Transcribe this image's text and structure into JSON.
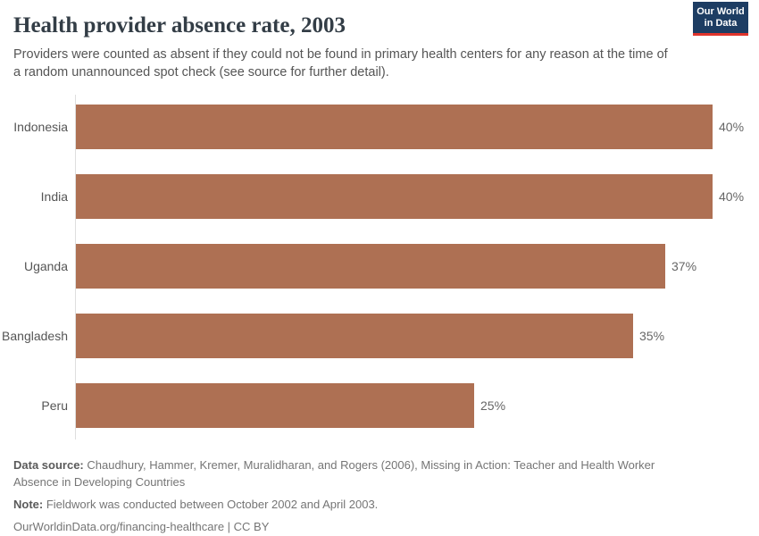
{
  "header": {
    "title": "Health provider absence rate, 2003",
    "subtitle": "Providers were counted as absent if they could not be found in primary health centers for any reason at the time of a random unannounced spot check (see source for further detail).",
    "logo_line1": "Our World",
    "logo_line2": "in Data"
  },
  "chart_data": {
    "type": "bar",
    "orientation": "horizontal",
    "categories": [
      "Indonesia",
      "India",
      "Uganda",
      "Bangladesh",
      "Peru"
    ],
    "values": [
      40,
      40,
      37,
      35,
      25
    ],
    "value_labels": [
      "40%",
      "40%",
      "37%",
      "35%",
      "25%"
    ],
    "unit": "%",
    "title": "Health provider absence rate, 2003",
    "xlabel": "",
    "ylabel": "",
    "xlim": [
      0,
      42.4
    ],
    "grid": false,
    "legend": "none",
    "bar_color": "#ae7053"
  },
  "footer": {
    "data_source_label": "Data source:",
    "data_source_text": " Chaudhury, Hammer, Kremer, Muralidharan, and Rogers (2006), Missing in Action: Teacher and Health Worker Absence in Developing Countries",
    "note_label": "Note:",
    "note_text": " Fieldwork was conducted between October 2002 and April 2003.",
    "citation": "OurWorldinData.org/financing-healthcare | CC BY"
  },
  "colors": {
    "bar": "#ae7053",
    "logo_navy": "#1d3d63",
    "logo_red": "#e0342c",
    "axis_line": "#dedede",
    "title_text": "#333d46",
    "muted_text": "#555555"
  }
}
